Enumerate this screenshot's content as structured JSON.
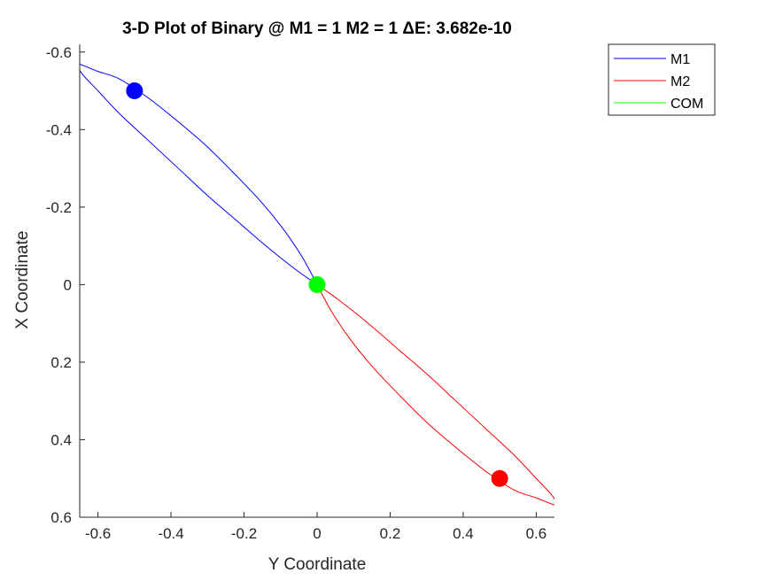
{
  "chart_data": {
    "type": "line",
    "title": "3-D Plot of Binary @ M1 = 1 M2 = 1 ΔE: 3.682e-10",
    "xlabel": "Y Coordinate",
    "ylabel": "X Coordinate",
    "xlim": [
      -0.65,
      0.65
    ],
    "ylim": [
      -0.62,
      0.6
    ],
    "y_reversed": true,
    "grid": false,
    "x_ticks": [
      -0.6,
      -0.4,
      -0.2,
      0,
      0.2,
      0.4,
      0.6
    ],
    "x_tick_labels": [
      "-0.6",
      "-0.4",
      "-0.2",
      "0",
      "0.2",
      "0.4",
      "0.6"
    ],
    "y_ticks": [
      -0.6,
      -0.4,
      -0.2,
      0,
      0.2,
      0.4,
      0.6
    ],
    "y_tick_labels": [
      "-0.6",
      "-0.4",
      "-0.2",
      "0",
      "0.2",
      "0.4",
      "0.6"
    ],
    "legend_placement": "outside top-right",
    "series": [
      {
        "name": "M1",
        "color": "#0000ff",
        "orbit": {
          "points": [
            {
              "x": 0,
              "y": 0
            },
            {
              "x": -0.06,
              "y": -0.04
            },
            {
              "x": -0.14,
              "y": -0.1
            },
            {
              "x": -0.22,
              "y": -0.165
            },
            {
              "x": -0.3,
              "y": -0.23
            },
            {
              "x": -0.38,
              "y": -0.3
            },
            {
              "x": -0.46,
              "y": -0.37
            },
            {
              "x": -0.54,
              "y": -0.44
            },
            {
              "x": -0.6,
              "y": -0.5
            },
            {
              "x": -0.64,
              "y": -0.54
            },
            {
              "x": -0.66,
              "y": -0.57
            },
            {
              "x": -0.64,
              "y": -0.565
            },
            {
              "x": -0.6,
              "y": -0.55
            },
            {
              "x": -0.54,
              "y": -0.53
            },
            {
              "x": -0.46,
              "y": -0.48
            },
            {
              "x": -0.38,
              "y": -0.42
            },
            {
              "x": -0.3,
              "y": -0.355
            },
            {
              "x": -0.22,
              "y": -0.28
            },
            {
              "x": -0.15,
              "y": -0.21
            },
            {
              "x": -0.09,
              "y": -0.14
            },
            {
              "x": -0.04,
              "y": -0.07
            },
            {
              "x": 0,
              "y": 0
            }
          ]
        },
        "marker": {
          "x": -0.5,
          "y": -0.5
        }
      },
      {
        "name": "M2",
        "color": "#ff0000",
        "orbit": {
          "points": [
            {
              "x": 0,
              "y": 0
            },
            {
              "x": 0.06,
              "y": 0.04
            },
            {
              "x": 0.14,
              "y": 0.1
            },
            {
              "x": 0.22,
              "y": 0.165
            },
            {
              "x": 0.3,
              "y": 0.23
            },
            {
              "x": 0.38,
              "y": 0.3
            },
            {
              "x": 0.46,
              "y": 0.37
            },
            {
              "x": 0.54,
              "y": 0.44
            },
            {
              "x": 0.6,
              "y": 0.5
            },
            {
              "x": 0.64,
              "y": 0.54
            },
            {
              "x": 0.66,
              "y": 0.57
            },
            {
              "x": 0.64,
              "y": 0.565
            },
            {
              "x": 0.6,
              "y": 0.55
            },
            {
              "x": 0.54,
              "y": 0.53
            },
            {
              "x": 0.46,
              "y": 0.48
            },
            {
              "x": 0.38,
              "y": 0.42
            },
            {
              "x": 0.3,
              "y": 0.355
            },
            {
              "x": 0.22,
              "y": 0.28
            },
            {
              "x": 0.15,
              "y": 0.21
            },
            {
              "x": 0.09,
              "y": 0.14
            },
            {
              "x": 0.04,
              "y": 0.07
            },
            {
              "x": 0,
              "y": 0
            }
          ]
        },
        "marker": {
          "x": 0.5,
          "y": 0.5
        }
      },
      {
        "name": "COM",
        "color": "#00ff00",
        "orbit": {
          "points": [
            {
              "x": 0,
              "y": 0
            }
          ]
        },
        "marker": {
          "x": 0,
          "y": 0
        }
      }
    ]
  }
}
